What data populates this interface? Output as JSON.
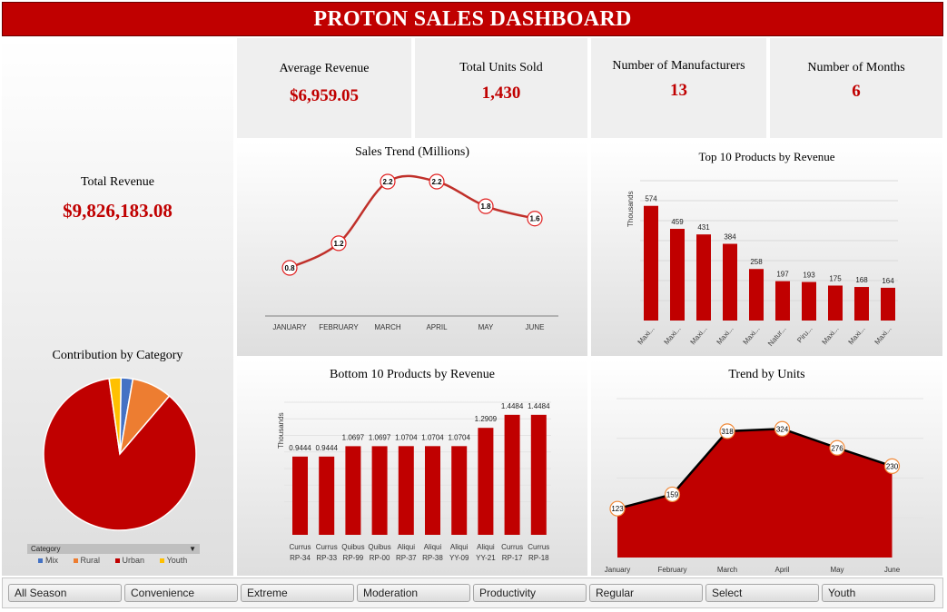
{
  "header": {
    "title": "PROTON SALES DASHBOARD"
  },
  "kpis": {
    "total_revenue": {
      "label": "Total Revenue",
      "value": "$9,826,183.08"
    },
    "average_revenue": {
      "label": "Average Revenue",
      "value": "$6,959.05"
    },
    "total_units": {
      "label": "Total Units Sold",
      "value": "1,430"
    },
    "manufacturers": {
      "label": "Number of Manufacturers",
      "value": "13"
    },
    "months": {
      "label": "Number of Months",
      "value": "6"
    }
  },
  "colors": {
    "accent": "#c00000",
    "mix": "#4472c4",
    "rural": "#ed7d31",
    "urban": "#c00000",
    "youth": "#ffc000"
  },
  "category_filter": {
    "label": "Category",
    "legend": [
      "Mix",
      "Rural",
      "Urban",
      "Youth"
    ]
  },
  "slicer": {
    "items": [
      "All Season",
      "Convenience",
      "Extreme",
      "Moderation",
      "Productivity",
      "Regular",
      "Select",
      "Youth"
    ]
  },
  "chart_data": [
    {
      "id": "sales_trend",
      "type": "line",
      "title": "Sales Trend (Millions)",
      "categories": [
        "JANUARY",
        "FEBRUARY",
        "MARCH",
        "APRIL",
        "MAY",
        "JUNE"
      ],
      "values": [
        0.8,
        1.2,
        2.2,
        2.2,
        1.8,
        1.6
      ],
      "ylim": [
        0,
        2.6
      ]
    },
    {
      "id": "top10",
      "type": "bar",
      "title": "Top 10 Products by Revenue",
      "ylabel": "Thousands",
      "categories": [
        "Maxi...",
        "Maxi...",
        "Maxi...",
        "Maxi...",
        "Maxi...",
        "Natur...",
        "Piru...",
        "Maxi...",
        "Maxi...",
        "Maxi..."
      ],
      "values": [
        574,
        459,
        431,
        384,
        258,
        197,
        193,
        175,
        168,
        164
      ],
      "ylim": [
        0,
        700
      ]
    },
    {
      "id": "bottom10",
      "type": "bar",
      "title": "Bottom 10 Products by Revenue",
      "ylabel": "Thousands",
      "categories": [
        "Currus RP-34",
        "Currus RP-33",
        "Quibus RP-99",
        "Quibus RP-00",
        "Aliqui RP-37",
        "Aliqui RP-38",
        "Aliqui YY-09",
        "Aliqui YY-21",
        "Currus RP-17",
        "Currus RP-18"
      ],
      "values": [
        0.9444,
        0.9444,
        1.0697,
        1.0697,
        1.0704,
        1.0704,
        1.0704,
        1.2909,
        1.4484,
        1.4484
      ],
      "ylim": [
        0,
        1.6
      ]
    },
    {
      "id": "trend_units",
      "type": "area",
      "title": "Trend by Units",
      "categories": [
        "January",
        "February",
        "March",
        "April",
        "May",
        "June"
      ],
      "values": [
        123,
        159,
        318,
        324,
        276,
        230
      ],
      "ylim": [
        0,
        400
      ]
    },
    {
      "id": "category",
      "type": "pie",
      "title": "Contribution by Category",
      "labels": [
        "Mix",
        "Rural",
        "Urban",
        "Youth"
      ],
      "values": [
        2.5,
        8.5,
        86.5,
        2.5
      ]
    }
  ]
}
